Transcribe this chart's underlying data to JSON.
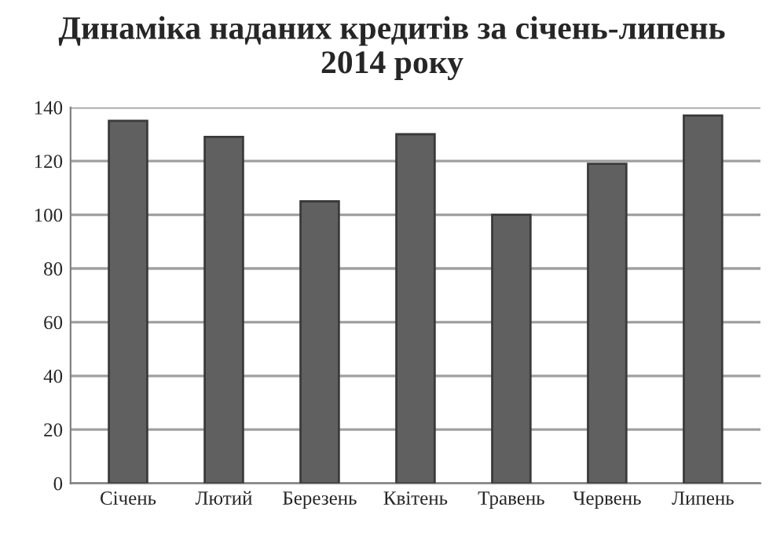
{
  "chart_data": {
    "type": "bar",
    "title": "Динаміка наданих кредитів за січень-липень\n2014 року",
    "categories": [
      "Січень",
      "Лютий",
      "Березень",
      "Квітень",
      "Травень",
      "Червень",
      "Липень"
    ],
    "values": [
      135,
      129,
      105,
      130,
      100,
      119,
      137
    ],
    "color": "#606060",
    "ylim": [
      0,
      140
    ],
    "yticks": [
      0,
      20,
      40,
      60,
      80,
      100,
      120,
      140
    ],
    "grid": "y"
  }
}
